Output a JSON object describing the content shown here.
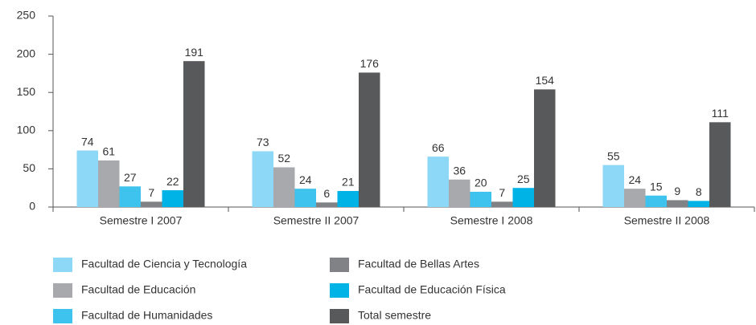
{
  "chart_data": {
    "type": "bar",
    "categories": [
      "Semestre I 2007",
      "Semestre II 2007",
      "Semestre I 2008",
      "Semestre II 2008"
    ],
    "series": [
      {
        "name": "Facultad de Ciencia y Tecnología",
        "color": "#8dd7f7",
        "values": [
          74,
          73,
          66,
          55
        ]
      },
      {
        "name": "Facultad de Educación",
        "color": "#a7a9ac",
        "values": [
          61,
          52,
          36,
          24
        ]
      },
      {
        "name": "Facultad de Humanidades",
        "color": "#3ec3ee",
        "values": [
          27,
          24,
          20,
          15
        ]
      },
      {
        "name": "Facultad de Bellas Artes",
        "color": "#808285",
        "values": [
          7,
          6,
          7,
          9
        ]
      },
      {
        "name": "Facultad de Educación Física",
        "color": "#00b3e6",
        "values": [
          22,
          21,
          25,
          8
        ]
      },
      {
        "name": "Total semestre",
        "color": "#58595b",
        "values": [
          191,
          176,
          154,
          111
        ]
      }
    ],
    "ylim": [
      0,
      250
    ],
    "yticks": [
      0,
      50,
      100,
      150,
      200,
      250
    ],
    "grid": false
  }
}
